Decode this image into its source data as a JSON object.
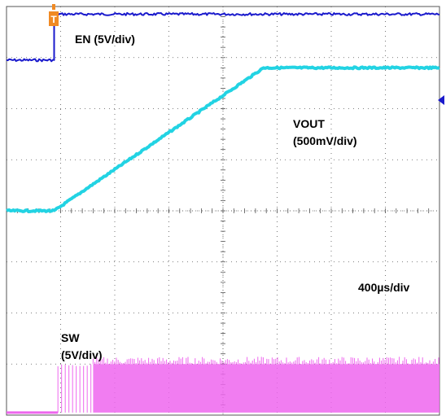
{
  "colors": {
    "en": "#1a1acc",
    "vout": "#22d3e3",
    "sw": "#ee66ee",
    "trigger": "#f08a24",
    "grid": "#555555"
  },
  "labels": {
    "en": "EN (5V/div)",
    "vout_line1": "VOUT",
    "vout_line2": "(500mV/div)",
    "timebase": "400µs/div",
    "sw_line1": "SW",
    "sw_line2": "(5V/div)",
    "trigger_marker": "T"
  },
  "chart_data": {
    "type": "line",
    "grid": true,
    "x_divisions": 8,
    "y_divisions": 8,
    "timebase": "400µs/div",
    "series": [
      {
        "name": "EN",
        "scale": "5V/div",
        "x": [
          0,
          0.88,
          0.88,
          8
        ],
        "y": [
          6.95,
          6.95,
          7.85,
          7.85
        ]
      },
      {
        "name": "VOUT",
        "scale": "500mV/div",
        "x": [
          0,
          0.88,
          4.75,
          8
        ],
        "y": [
          4.0,
          4.0,
          6.8,
          6.8
        ]
      },
      {
        "name": "SW",
        "scale": "5V/div",
        "x": [
          0,
          0.95,
          0.95,
          1.6,
          1.6,
          8
        ],
        "y": [
          0.05,
          0.05,
          1.0,
          1.0,
          1.0,
          1.0
        ]
      }
    ]
  }
}
